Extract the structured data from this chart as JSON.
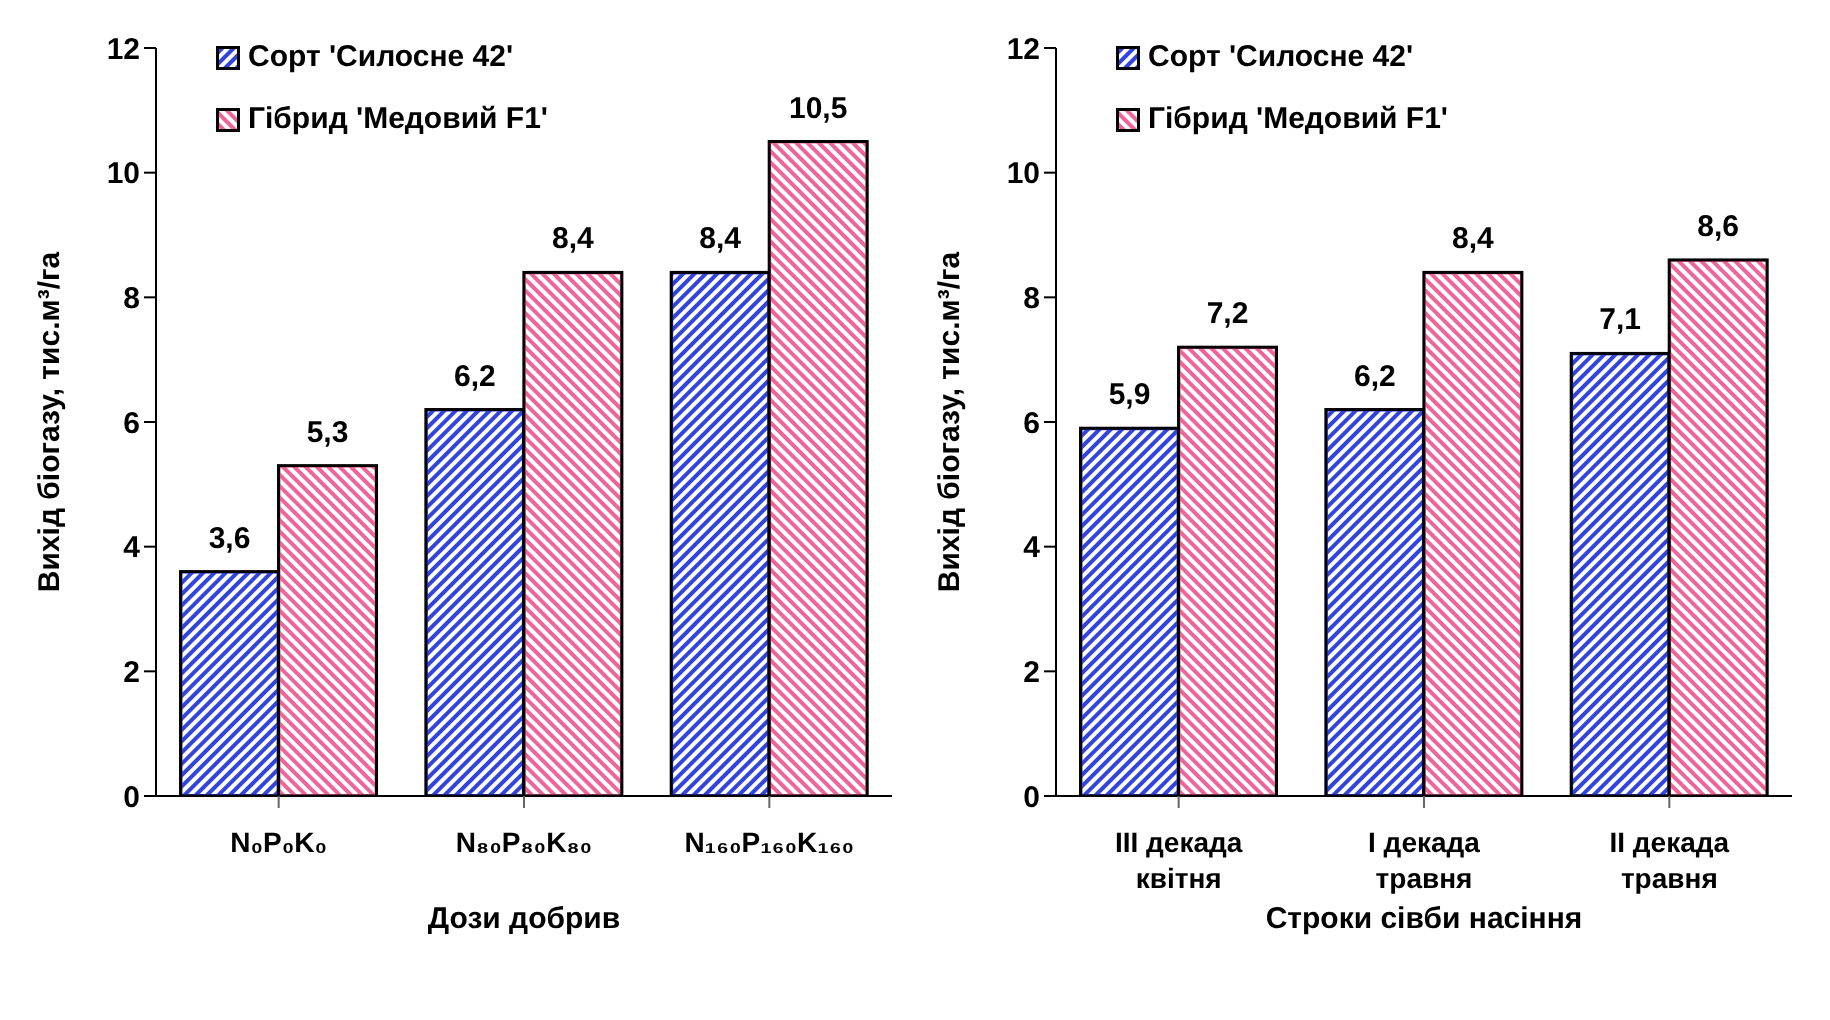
{
  "chart_data": [
    {
      "type": "bar",
      "xlabel": "Дози добрив",
      "ylabel": "Вихід біогазу, тис.м³/га",
      "categories": [
        "N₀P₀K₀",
        "N₈₀P₈₀K₈₀",
        "N₁₆₀P₁₆₀K₁₆₀"
      ],
      "series": [
        {
          "name": "Сорт 'Силосне 42'",
          "color": "#3344dd",
          "values": [
            3.6,
            6.2,
            8.4
          ],
          "value_labels": [
            "3,6",
            "6,2",
            "8,4"
          ]
        },
        {
          "name": "Гібрид 'Медовий F1'",
          "color": "#ee6699",
          "values": [
            5.3,
            8.4,
            10.5
          ],
          "value_labels": [
            "5,3",
            "8,4",
            "10,5"
          ]
        }
      ],
      "ylim": [
        0,
        12
      ],
      "yticks": [
        0,
        2,
        4,
        6,
        8,
        10,
        12
      ],
      "grid": false,
      "legend": "top left"
    },
    {
      "type": "bar",
      "xlabel": "Строки сівби насіння",
      "ylabel": "Вихід біогазу, тис.м³/га",
      "categories": [
        "III декада квітня",
        "I декада травня",
        "II декада травня"
      ],
      "series": [
        {
          "name": "Сорт 'Силосне 42'",
          "color": "#3344dd",
          "values": [
            5.9,
            6.2,
            7.1
          ],
          "value_labels": [
            "5,9",
            "6,2",
            "7,1"
          ]
        },
        {
          "name": "Гібрид 'Медовий F1'",
          "color": "#ee6699",
          "values": [
            7.2,
            8.4,
            8.6
          ],
          "value_labels": [
            "7,2",
            "8,4",
            "8,6"
          ]
        }
      ],
      "ylim": [
        0,
        12
      ],
      "yticks": [
        0,
        2,
        4,
        6,
        8,
        10,
        12
      ],
      "grid": false,
      "legend": "top left"
    }
  ]
}
